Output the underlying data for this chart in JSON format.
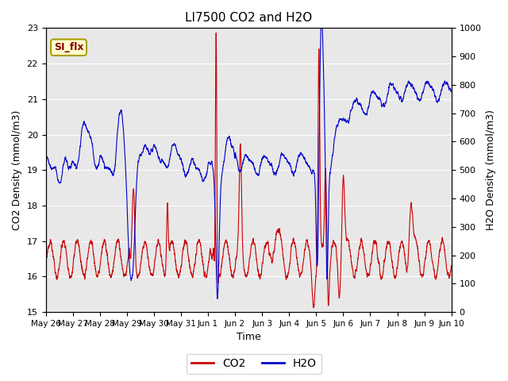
{
  "title": "LI7500 CO2 and H2O",
  "xlabel": "Time",
  "ylabel_left": "CO2 Density (mmol/m3)",
  "ylabel_right": "H2O Density (mmol/m3)",
  "xlim_days": [
    0,
    15
  ],
  "ylim_left": [
    15.0,
    23.0
  ],
  "ylim_right": [
    0,
    1000
  ],
  "yticks_left": [
    15.0,
    16.0,
    17.0,
    18.0,
    19.0,
    20.0,
    21.0,
    22.0,
    23.0
  ],
  "yticks_right": [
    0,
    100,
    200,
    300,
    400,
    500,
    600,
    700,
    800,
    900,
    1000
  ],
  "xtick_labels": [
    "May 26",
    "May 27",
    "May 28",
    "May 29",
    "May 30",
    "May 31",
    "Jun 1",
    "Jun 2",
    "Jun 3",
    "Jun 4",
    "Jun 5",
    "Jun 6",
    "Jun 7",
    "Jun 8",
    "Jun 9",
    "Jun 10"
  ],
  "co2_color": "#cc0000",
  "h2o_color": "#0000cc",
  "bg_color": "#e8e8e8",
  "annotation_text": "SI_flx",
  "legend_co2": "CO2",
  "legend_h2o": "H2O",
  "linewidth": 0.8
}
